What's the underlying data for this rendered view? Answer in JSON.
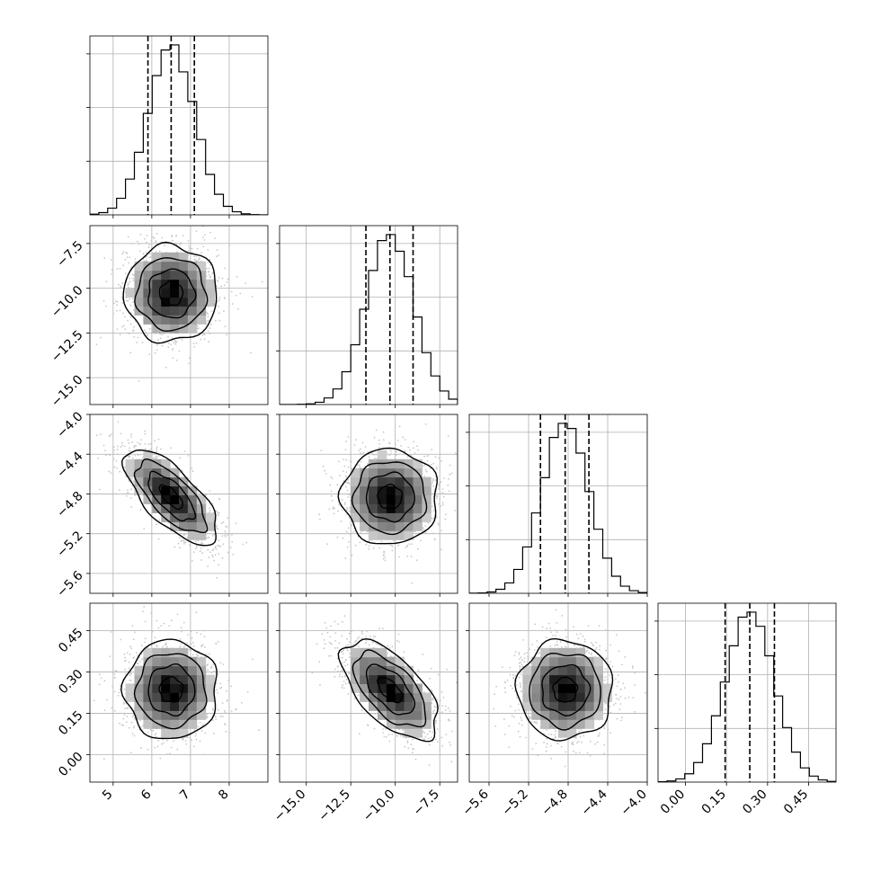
{
  "chart_data": {
    "type": "corner",
    "parameters": 4,
    "grid": true,
    "quantiles": [
      0.16,
      0.5,
      0.84
    ],
    "axes": [
      {
        "index": 0,
        "range": [
          4.4,
          9.0
        ],
        "ticks": [
          5,
          6,
          7,
          8
        ],
        "tick_labels": [
          "5",
          "6",
          "7",
          "8"
        ],
        "mean": 6.5,
        "std": 0.6,
        "quantile_values": [
          5.9,
          6.5,
          7.1
        ]
      },
      {
        "index": 1,
        "range": [
          -16.5,
          -6.5
        ],
        "ticks": [
          -15.0,
          -12.5,
          -10.0,
          -7.5
        ],
        "tick_labels": [
          "−15.0",
          "−12.5",
          "−10.0",
          "−7.5"
        ],
        "mean": -10.3,
        "std": 1.35,
        "quantile_values": [
          -11.65,
          -10.3,
          -9.0
        ]
      },
      {
        "index": 2,
        "range": [
          -5.8,
          -4.0
        ],
        "ticks": [
          -5.6,
          -5.2,
          -4.8,
          -4.4,
          -4.0
        ],
        "tick_labels": [
          "−5.6",
          "−5.2",
          "−4.8",
          "−4.4",
          "−4.0"
        ],
        "mean": -4.83,
        "std": 0.24,
        "quantile_values": [
          -5.08,
          -4.83,
          -4.59
        ]
      },
      {
        "index": 3,
        "range": [
          -0.1,
          0.55
        ],
        "ticks": [
          0.0,
          0.15,
          0.3,
          0.45
        ],
        "tick_labels": [
          "0.00",
          "0.15",
          "0.30",
          "0.45"
        ],
        "mean": 0.235,
        "std": 0.09,
        "quantile_values": [
          0.145,
          0.235,
          0.325
        ]
      }
    ],
    "correlations": [
      {
        "pair": [
          0,
          1
        ],
        "rho": 0.0
      },
      {
        "pair": [
          0,
          2
        ],
        "rho": -0.7
      },
      {
        "pair": [
          0,
          3
        ],
        "rho": 0.0
      },
      {
        "pair": [
          1,
          2
        ],
        "rho": 0.0
      },
      {
        "pair": [
          1,
          3
        ],
        "rho": -0.6
      },
      {
        "pair": [
          2,
          3
        ],
        "rho": 0.0
      }
    ],
    "contour_levels_sigma": [
      0.5,
      1.0,
      1.5,
      2.0
    ]
  }
}
